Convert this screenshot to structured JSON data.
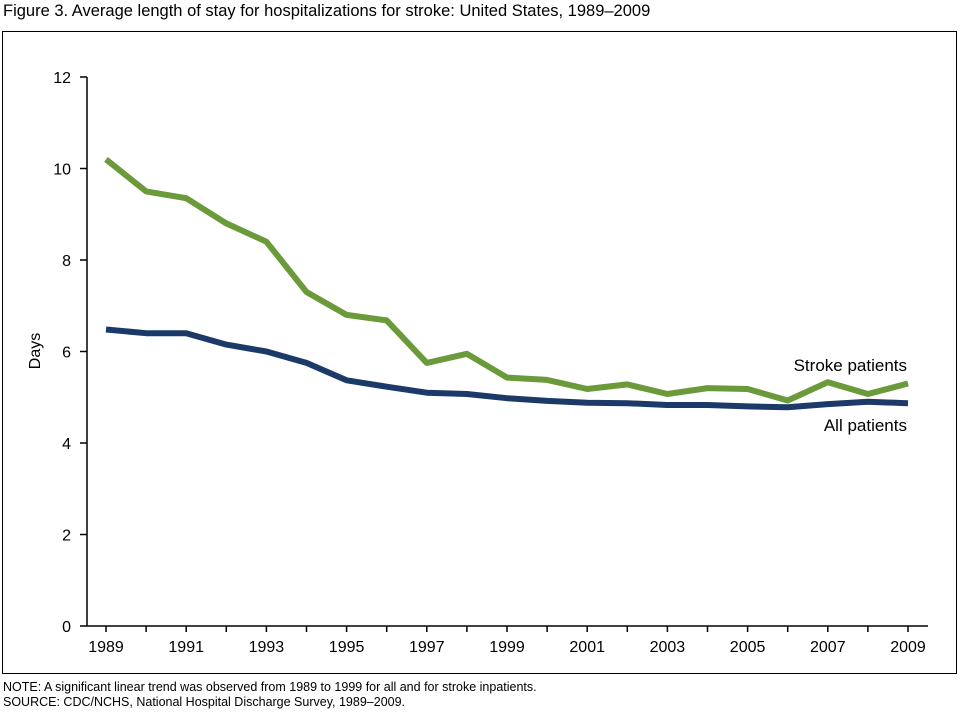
{
  "figure": {
    "title": "Figure 3. Average length of stay for hospitalizations for stroke: United States, 1989–2009",
    "note": "NOTE: A significant linear trend was observed from 1989 to 1999 for all and for stroke inpatients.",
    "source": "SOURCE: CDC/NCHS, National Hospital Discharge Survey, 1989–2009."
  },
  "chart_data": {
    "type": "line",
    "title": "Figure 3. Average length of stay for hospitalizations for stroke: United States, 1989–2009",
    "xlabel": "",
    "ylabel": "Days",
    "x": [
      1989,
      1990,
      1991,
      1992,
      1993,
      1994,
      1995,
      1996,
      1997,
      1998,
      1999,
      2000,
      2001,
      2002,
      2003,
      2004,
      2005,
      2006,
      2007,
      2008,
      2009
    ],
    "x_tick_labels": [
      "1989",
      "1991",
      "1993",
      "1995",
      "1997",
      "1999",
      "2001",
      "2003",
      "2005",
      "2007",
      "2009"
    ],
    "ylim": [
      0,
      12
    ],
    "y_ticks": [
      0,
      2,
      4,
      6,
      8,
      10,
      12
    ],
    "grid": false,
    "legend": "direct labels at right end of lines",
    "series": [
      {
        "name": "Stroke patients",
        "color": "#6a9a3a",
        "values": [
          10.2,
          9.5,
          9.35,
          8.8,
          8.4,
          7.3,
          6.8,
          6.68,
          5.75,
          5.95,
          5.43,
          5.38,
          5.18,
          5.28,
          5.07,
          5.2,
          5.18,
          4.93,
          5.33,
          5.07,
          5.3
        ]
      },
      {
        "name": "All patients",
        "color": "#1b3a68",
        "values": [
          6.48,
          6.4,
          6.4,
          6.15,
          6.0,
          5.75,
          5.37,
          5.23,
          5.1,
          5.07,
          4.98,
          4.92,
          4.88,
          4.87,
          4.83,
          4.83,
          4.8,
          4.78,
          4.85,
          4.9,
          4.87
        ]
      }
    ]
  }
}
